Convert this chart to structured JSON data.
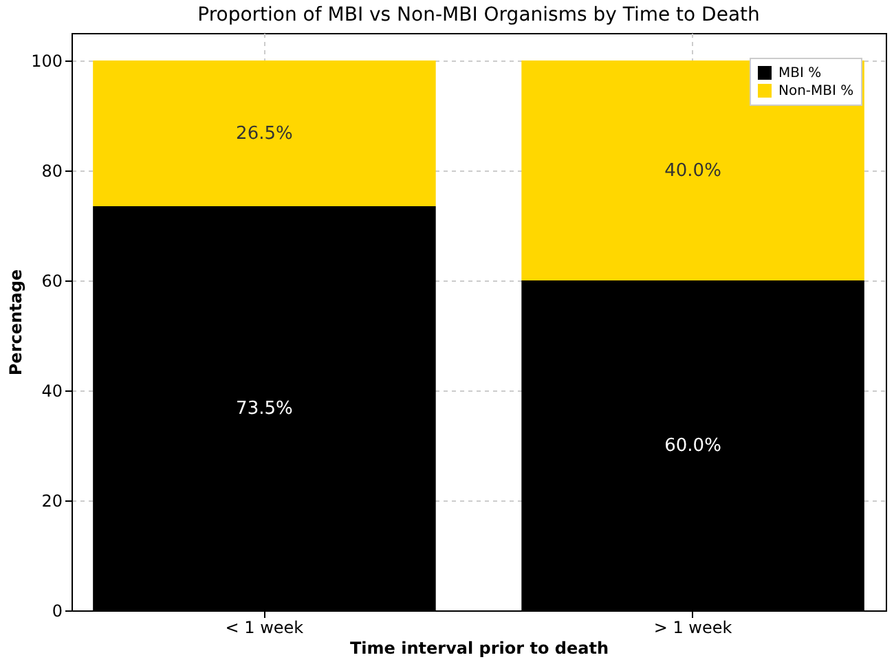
{
  "chart_data": {
    "type": "bar",
    "title": "Proportion of MBI vs Non-MBI Organisms by Time to Death",
    "xlabel": "Time interval prior to death",
    "ylabel": "Percentage",
    "categories": [
      "< 1 week",
      "> 1 week"
    ],
    "stacked": true,
    "ylim": [
      0,
      105
    ],
    "yticks": [
      0,
      20,
      40,
      60,
      80,
      100
    ],
    "grid": true,
    "legend": "top right",
    "series": [
      {
        "name": "MBI %",
        "color": "#000000",
        "values": [
          73.5,
          60.0
        ],
        "value_labels": [
          "73.5%",
          "60.0%"
        ]
      },
      {
        "name": "Non-MBI %",
        "color": "#ffd700",
        "values": [
          26.5,
          40.0
        ],
        "value_labels": [
          "26.5%",
          "40.0%"
        ]
      }
    ]
  }
}
